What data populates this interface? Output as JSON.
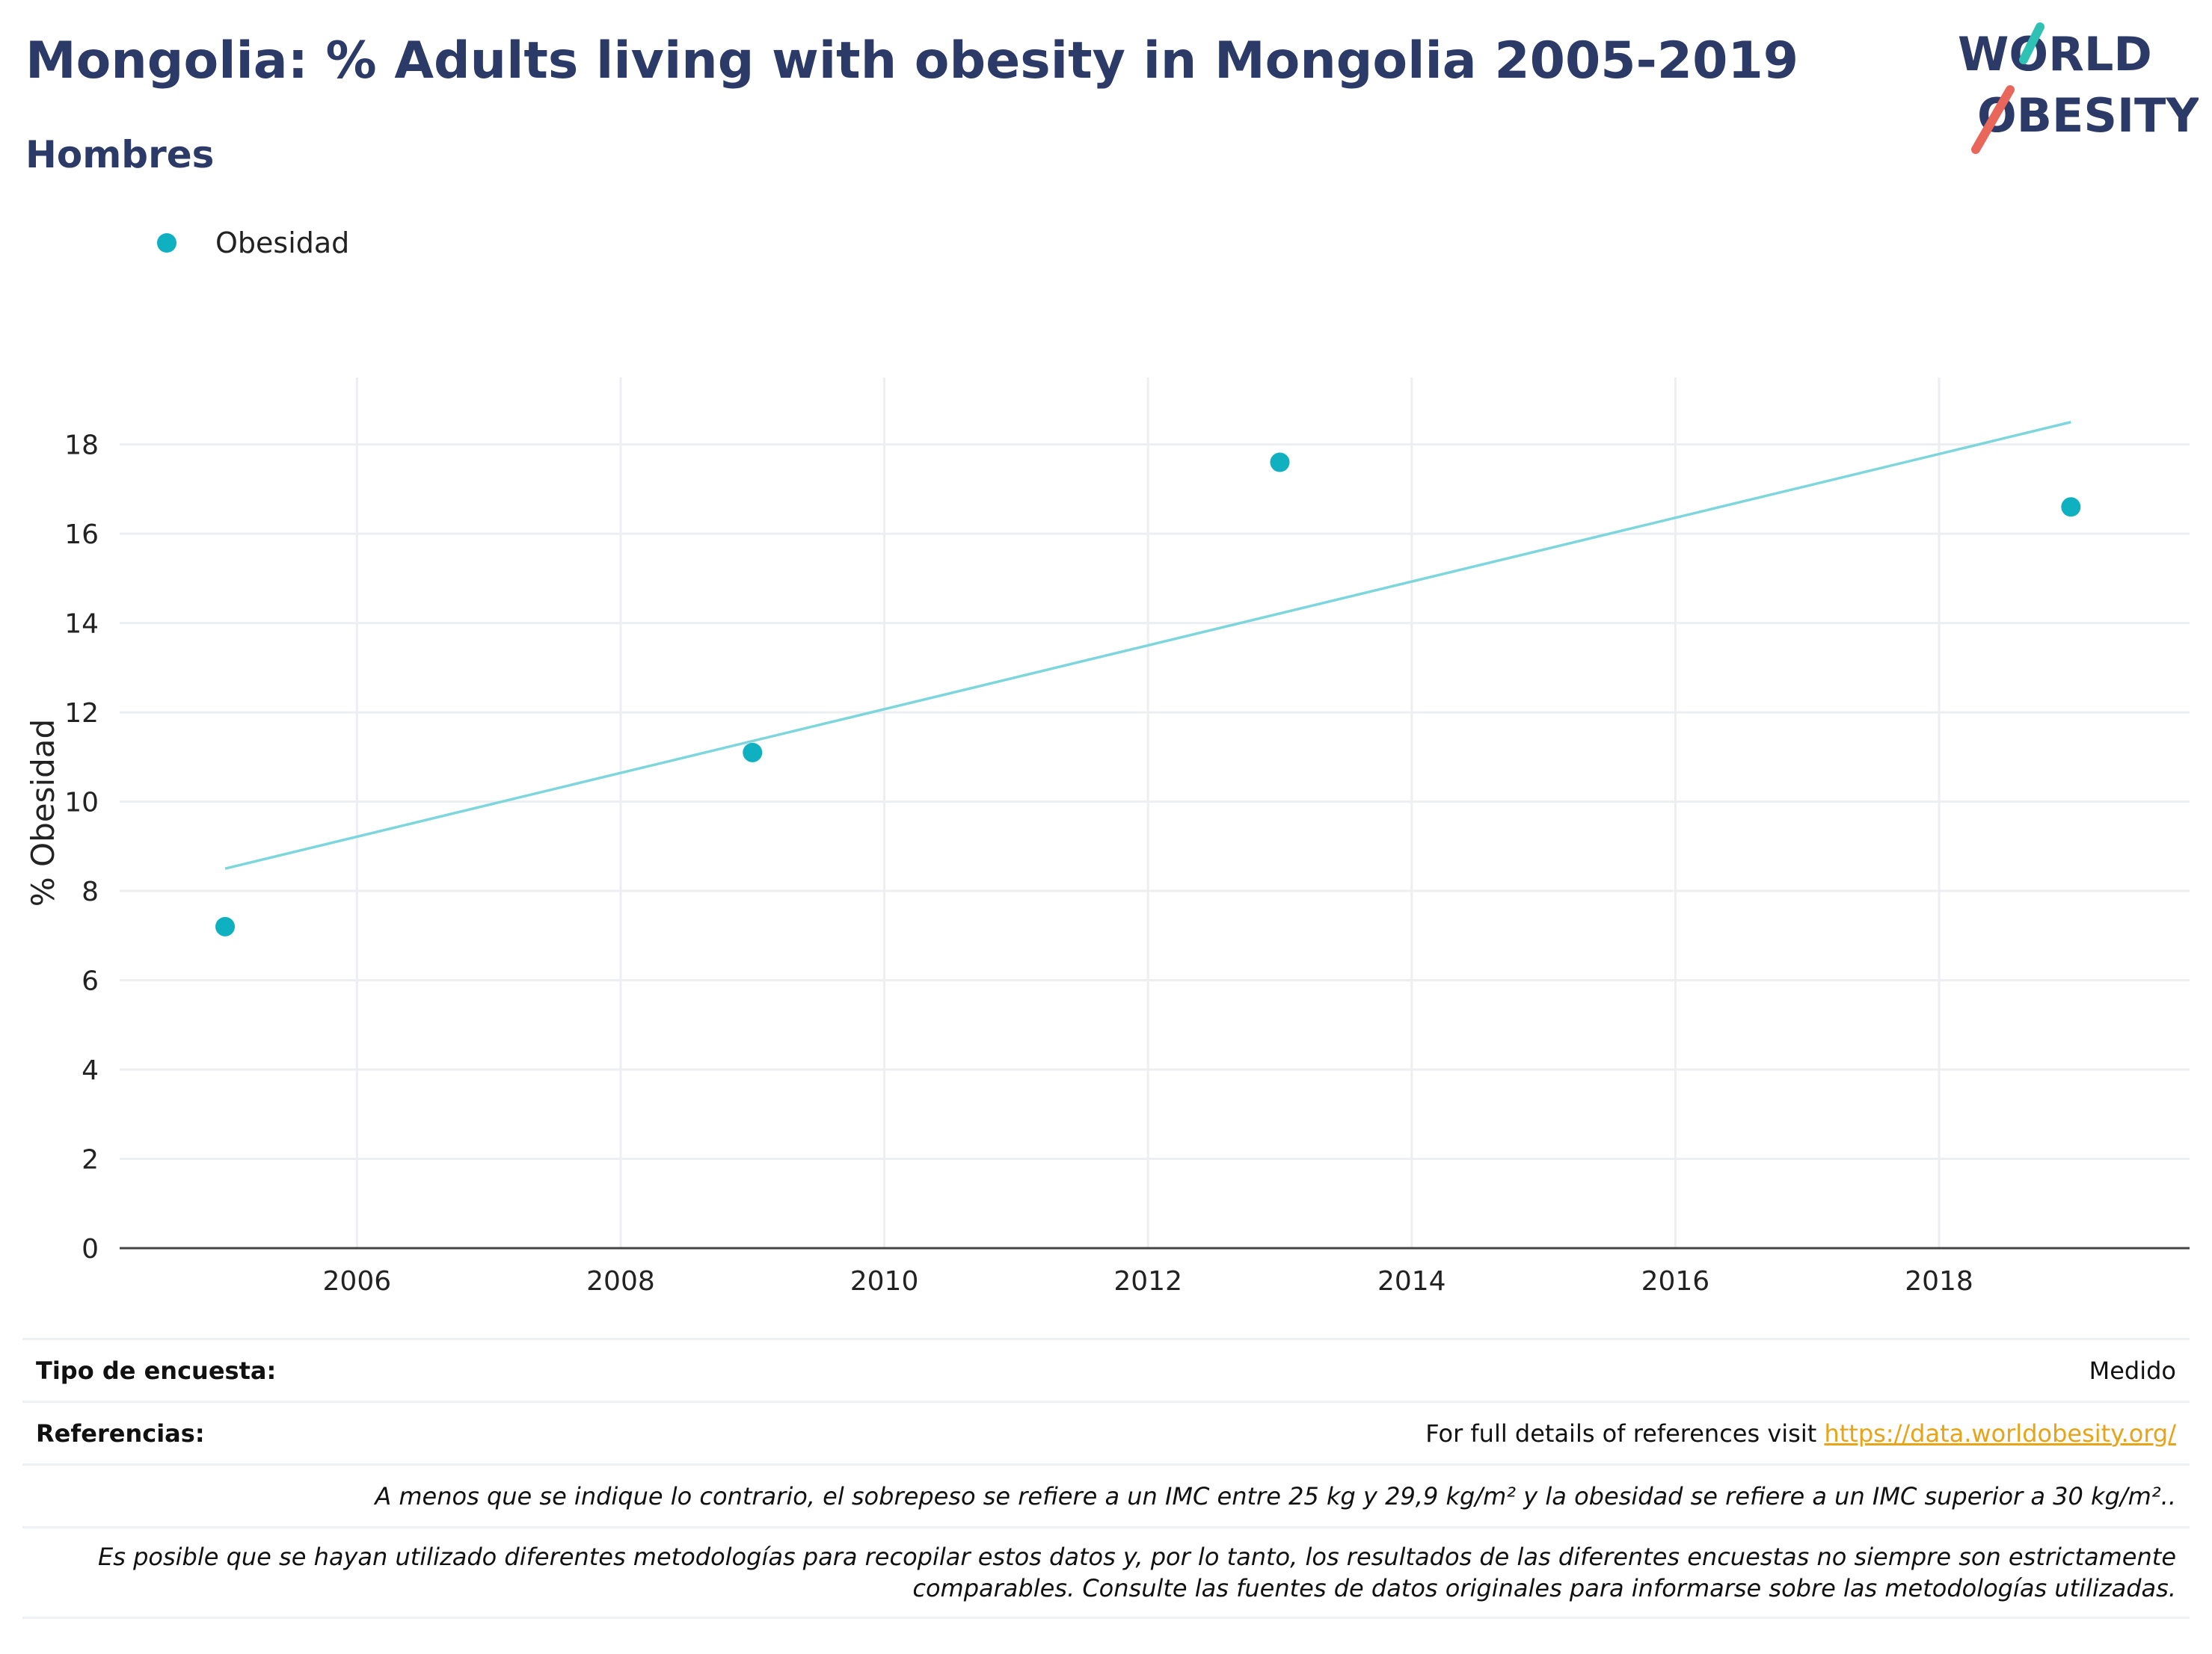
{
  "header": {
    "title": "Mongolia: % Adults living with obesity in Mongolia 2005-2019",
    "subtitle": "Hombres"
  },
  "logo": {
    "line1": "WORLD",
    "line2": "OBESITY"
  },
  "legend": {
    "label": "Obesidad"
  },
  "colors": {
    "accent": "#0fb0bf",
    "trend": "#7dd6dc",
    "title": "#2b3a67",
    "logo_slash_teal": "#2fc1b4",
    "logo_slash_red": "#e8665a",
    "link": "#e8a317"
  },
  "chart_data": {
    "type": "scatter",
    "ylabel": "% Obesidad",
    "xlabel": "",
    "xlim": [
      2004.2,
      2019.9
    ],
    "ylim": [
      0,
      19.5
    ],
    "xticks": [
      2006,
      2008,
      2010,
      2012,
      2014,
      2016,
      2018
    ],
    "yticks": [
      0,
      2,
      4,
      6,
      8,
      10,
      12,
      14,
      16,
      18
    ],
    "grid": true,
    "legend_position": "top-left",
    "series": [
      {
        "name": "Obesidad",
        "x": [
          2005,
          2009,
          2013,
          2019
        ],
        "y": [
          7.2,
          11.1,
          17.6,
          16.6
        ]
      }
    ],
    "trendline": {
      "x": [
        2005,
        2019
      ],
      "y": [
        8.5,
        18.5
      ]
    }
  },
  "footer": {
    "survey_label": "Tipo de encuesta:",
    "survey_value": "Medido",
    "refs_label": "Referencias:",
    "refs_text": "For full details of references visit ",
    "refs_link": "https://data.worldobesity.org/",
    "note1": "A menos que se indique lo contrario, el sobrepeso se refiere a un IMC entre 25 kg y 29,9 kg/m² y la obesidad se refiere a un IMC superior a 30 kg/m²..",
    "note2_line1": "Es posible que se hayan utilizado diferentes metodologías para recopilar estos datos y, por lo tanto, los resultados de las diferentes encuestas no siempre son estrictamente",
    "note2_line2": "comparables. Consulte las fuentes de datos originales para informarse sobre las metodologías utilizadas."
  }
}
